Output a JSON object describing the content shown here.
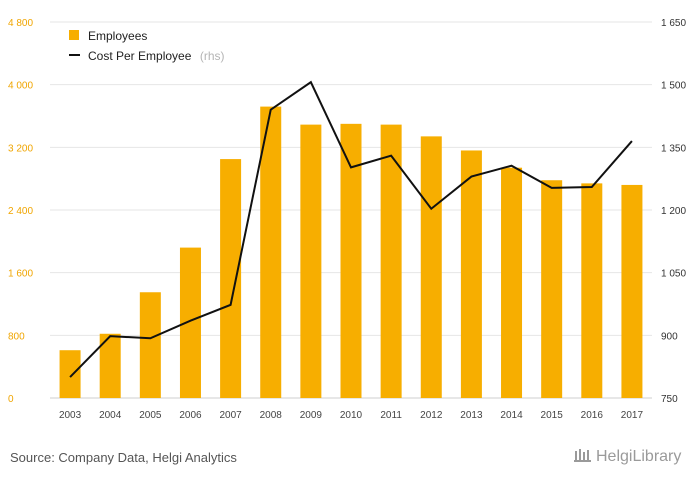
{
  "chart_data": {
    "type": "bar",
    "categories": [
      "2003",
      "2004",
      "2005",
      "2006",
      "2007",
      "2008",
      "2009",
      "2010",
      "2011",
      "2012",
      "2013",
      "2014",
      "2015",
      "2016",
      "2017"
    ],
    "series": [
      {
        "name": "Employees",
        "kind": "bar",
        "axis": "left",
        "color": "#f7ae00",
        "values": [
          610,
          820,
          1350,
          1920,
          3050,
          3720,
          3490,
          3500,
          3490,
          3340,
          3160,
          2940,
          2780,
          2740,
          2720
        ]
      },
      {
        "name": "Cost Per Employee",
        "legend_note": "(rhs)",
        "kind": "line",
        "axis": "right",
        "color": "#111111",
        "values": [
          800,
          898,
          893,
          935,
          973,
          1440,
          1506,
          1302,
          1330,
          1203,
          1280,
          1306,
          1253,
          1255,
          1365
        ]
      }
    ],
    "left_axis": {
      "ylim": [
        0,
        4800
      ],
      "ticks": [
        0,
        800,
        1600,
        2400,
        3200,
        4000,
        4800
      ],
      "tick_labels": [
        "0",
        "800",
        "1 600",
        "2 400",
        "3 200",
        "4 000",
        "4 800"
      ],
      "color": "#f0a500"
    },
    "right_axis": {
      "ylim": [
        750,
        1650
      ],
      "ticks": [
        750,
        900,
        1050,
        1200,
        1350,
        1500,
        1650
      ],
      "tick_labels": [
        "750",
        "900",
        "1 050",
        "1 200",
        "1 350",
        "1 500",
        "1 650"
      ],
      "color": "#333333"
    },
    "grid": true,
    "legend_position": "top-left",
    "title": "",
    "xlabel": "",
    "ylabel": ""
  },
  "footer": {
    "source": "Source: Company Data, Helgi Analytics",
    "brand": "HelgiLibrary"
  }
}
